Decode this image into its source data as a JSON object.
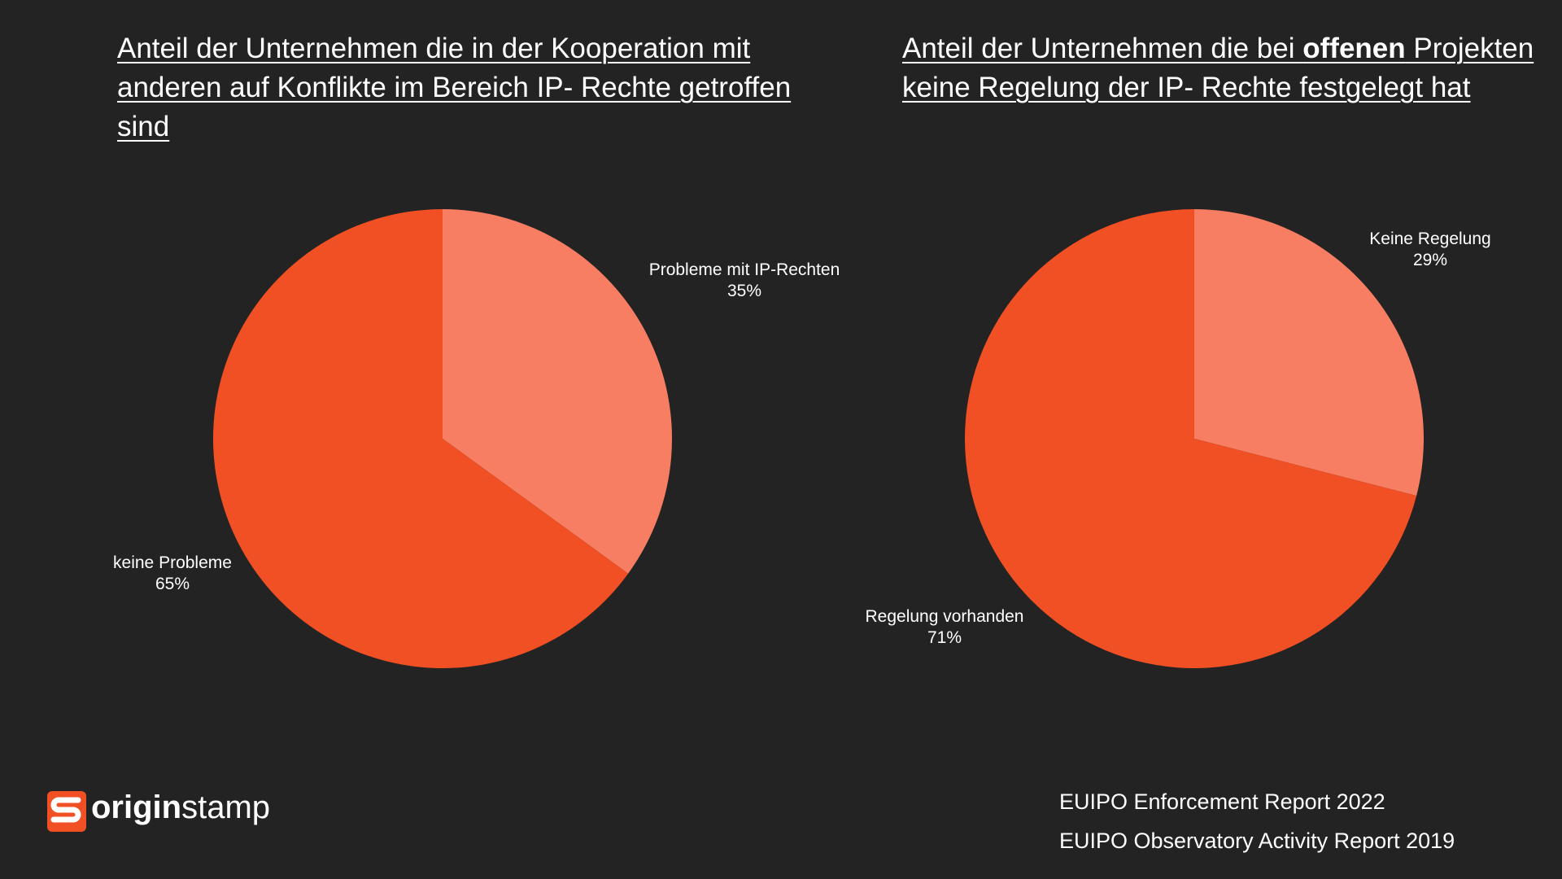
{
  "chart_data": [
    {
      "type": "pie",
      "title": [
        "Anteil der Unternehmen die in der Kooperation mit anderen auf Konflikte im Bereich IP- Rechte getroffen sind"
      ],
      "categories": [
        "Probleme mit IP-Rechten",
        "keine Probleme"
      ],
      "values": [
        35,
        65
      ],
      "value_labels": [
        "35%",
        "65%"
      ],
      "colors": [
        "#f77e62",
        "#f05024"
      ]
    },
    {
      "type": "pie",
      "title": [
        "Anteil der Unternehmen die bei ",
        "offenen",
        " Projekten keine Regelung der IP- Rechte festgelegt hat"
      ],
      "categories": [
        "Keine Regelung",
        "Regelung vorhanden"
      ],
      "values": [
        29,
        71
      ],
      "value_labels": [
        "29%",
        "71%"
      ],
      "colors": [
        "#f77e62",
        "#f05024"
      ]
    }
  ],
  "logo": {
    "bold": "origin",
    "regular": "stamp"
  },
  "sources": [
    "EUIPO Enforcement Report 2022",
    "EUIPO Observatory Activity Report 2019"
  ]
}
